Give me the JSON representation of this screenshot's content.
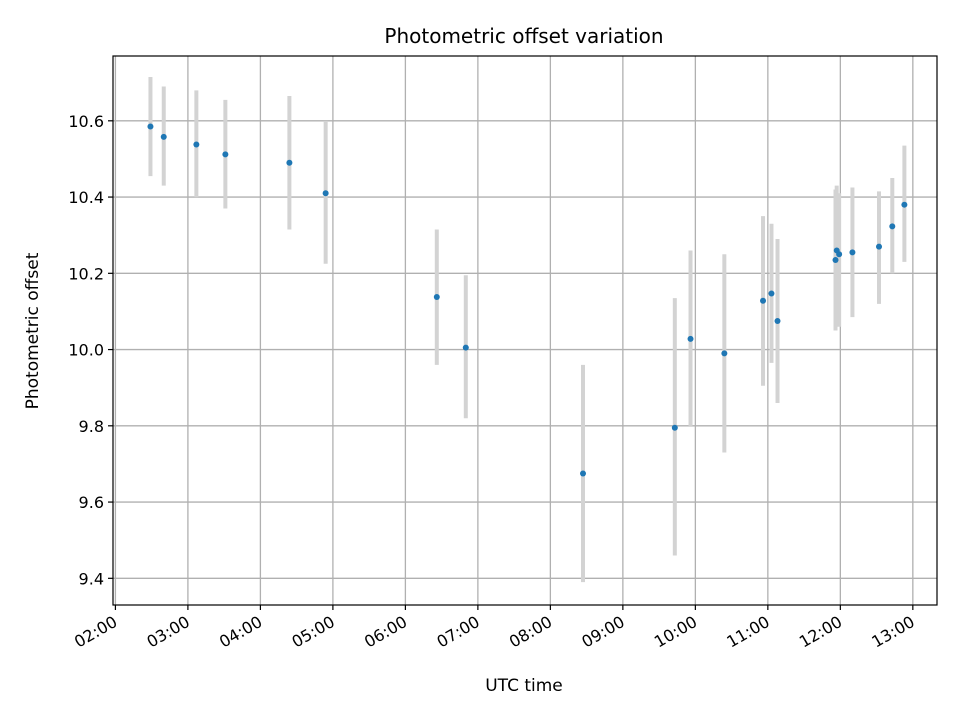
{
  "chart_data": {
    "type": "scatter",
    "title": "Photometric offset variation",
    "xlabel": "UTC time",
    "ylabel": "Photometric offset",
    "x_axis_type": "time",
    "xlim": [
      "01:58",
      "13:20"
    ],
    "ylim": [
      9.33,
      10.77
    ],
    "grid": true,
    "legend": "none",
    "x_ticks": [
      "02:00",
      "03:00",
      "04:00",
      "05:00",
      "06:00",
      "07:00",
      "08:00",
      "09:00",
      "10:00",
      "11:00",
      "12:00",
      "13:00"
    ],
    "y_ticks": [
      "9.4",
      "9.6",
      "9.8",
      "10.0",
      "10.2",
      "10.4",
      "10.6"
    ],
    "colors": {
      "points": "#1f77b4",
      "errorbars": "#d3d3d3",
      "grid": "#b0b0b0"
    },
    "series": [
      {
        "x": [
          "02:29",
          "02:40",
          "03:07",
          "03:31",
          "04:24",
          "04:54",
          "06:26",
          "06:50",
          "08:27",
          "09:43",
          "09:56",
          "10:24",
          "10:56",
          "11:03",
          "11:08",
          "11:56",
          "11:57",
          "11:59",
          "12:10",
          "12:32",
          "12:43",
          "12:53"
        ],
        "y": [
          10.585,
          10.558,
          10.538,
          10.512,
          10.49,
          10.41,
          10.138,
          10.005,
          9.675,
          9.795,
          10.028,
          9.99,
          10.128,
          10.147,
          10.075,
          10.235,
          10.26,
          10.25,
          10.255,
          10.27,
          10.323,
          10.38
        ],
        "yerr_low": [
          10.455,
          10.43,
          10.4,
          10.37,
          10.315,
          10.225,
          9.96,
          9.82,
          9.39,
          9.46,
          9.8,
          9.73,
          9.905,
          9.965,
          9.86,
          10.05,
          10.07,
          10.06,
          10.085,
          10.12,
          10.2,
          10.23
        ],
        "yerr_high": [
          10.715,
          10.69,
          10.68,
          10.655,
          10.665,
          10.6,
          10.315,
          10.195,
          9.96,
          10.135,
          10.26,
          10.25,
          10.35,
          10.33,
          10.29,
          10.42,
          10.43,
          10.41,
          10.425,
          10.415,
          10.45,
          10.535
        ]
      }
    ]
  }
}
